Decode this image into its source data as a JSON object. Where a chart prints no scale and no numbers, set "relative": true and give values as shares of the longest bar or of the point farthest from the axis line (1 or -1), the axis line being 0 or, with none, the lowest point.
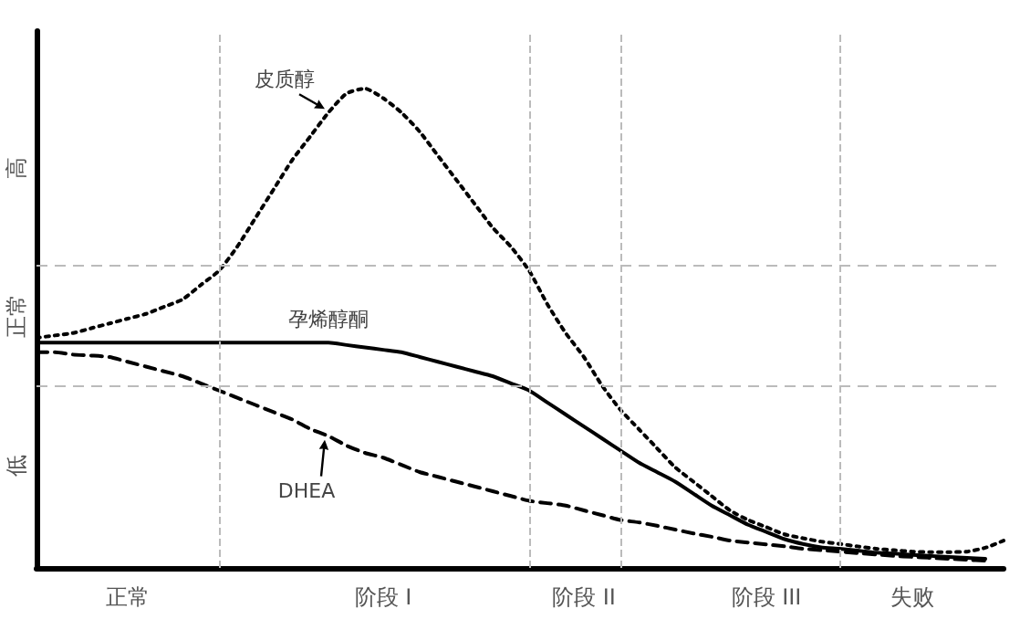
{
  "chart_data": {
    "type": "line",
    "relative": true,
    "marker": "none",
    "categories": [
      null,
      null,
      null,
      null,
      null,
      "正常",
      null,
      null,
      null,
      null,
      null,
      null,
      null,
      null,
      null,
      null,
      null,
      null,
      null,
      "阶段 I",
      null,
      null,
      null,
      null,
      null,
      null,
      null,
      null,
      null,
      null,
      "阶段 II",
      null,
      null,
      null,
      null,
      null,
      null,
      null,
      null,
      null,
      "阶段 III",
      null,
      null,
      null,
      null,
      null,
      null,
      null,
      "失败",
      null,
      null,
      null,
      null,
      null
    ],
    "series": [
      {
        "name": "皮质醇",
        "color": "#000000",
        "line_style": "dotted",
        "values": [
          0.48,
          0.485,
          0.49,
          0.5,
          0.51,
          0.52,
          0.53,
          0.545,
          0.56,
          0.59,
          0.62,
          0.67,
          0.73,
          0.79,
          0.85,
          0.9,
          0.95,
          0.99,
          1.0,
          0.98,
          0.95,
          0.91,
          0.86,
          0.81,
          0.76,
          0.71,
          0.67,
          0.62,
          0.55,
          0.49,
          0.44,
          0.38,
          0.33,
          0.29,
          0.25,
          0.21,
          0.18,
          0.15,
          0.12,
          0.1,
          0.085,
          0.07,
          0.062,
          0.055,
          0.05,
          0.045,
          0.04,
          0.037,
          0.034,
          0.033,
          0.033,
          0.034,
          0.042,
          0.057
        ]
      },
      {
        "name": "孕烯醇酮",
        "color": "#000000",
        "line_style": "solid",
        "values": [
          0.47,
          0.47,
          0.47,
          0.47,
          0.47,
          0.47,
          0.47,
          0.47,
          0.47,
          0.47,
          0.47,
          0.47,
          0.47,
          0.47,
          0.47,
          0.47,
          0.47,
          0.465,
          0.46,
          0.455,
          0.45,
          0.44,
          0.43,
          0.42,
          0.41,
          0.4,
          0.385,
          0.37,
          0.345,
          0.32,
          0.295,
          0.27,
          0.245,
          0.22,
          0.2,
          0.18,
          0.155,
          0.13,
          0.11,
          0.09,
          0.075,
          0.06,
          0.05,
          0.043,
          0.04,
          0.036,
          0.032,
          0.03,
          0.027,
          0.025,
          0.023,
          0.021,
          0.019,
          null
        ]
      },
      {
        "name": "DHEA",
        "color": "#000000",
        "line_style": "dashed",
        "values": [
          0.45,
          0.45,
          0.445,
          0.443,
          0.44,
          0.43,
          0.42,
          0.41,
          0.4,
          0.385,
          0.37,
          0.355,
          0.34,
          0.325,
          0.31,
          0.29,
          0.275,
          0.255,
          0.24,
          0.23,
          0.215,
          0.2,
          0.19,
          0.18,
          0.17,
          0.16,
          0.15,
          0.14,
          0.135,
          0.13,
          0.12,
          0.11,
          0.1,
          0.095,
          0.088,
          0.08,
          0.072,
          0.065,
          0.057,
          0.053,
          0.049,
          0.045,
          0.04,
          0.037,
          0.034,
          0.031,
          0.028,
          0.025,
          0.023,
          0.021,
          0.019,
          0.017,
          0.015,
          null
        ]
      }
    ],
    "ref_lines": [
      {
        "axis": "y",
        "value": 0.378,
        "color": "#bbbbbb",
        "line_style": "dashed"
      },
      {
        "axis": "y",
        "value": 0.63,
        "color": "#bbbbbb",
        "line_style": "dashed"
      }
    ],
    "annotations": [
      "高",
      "正常",
      "低"
    ]
  }
}
